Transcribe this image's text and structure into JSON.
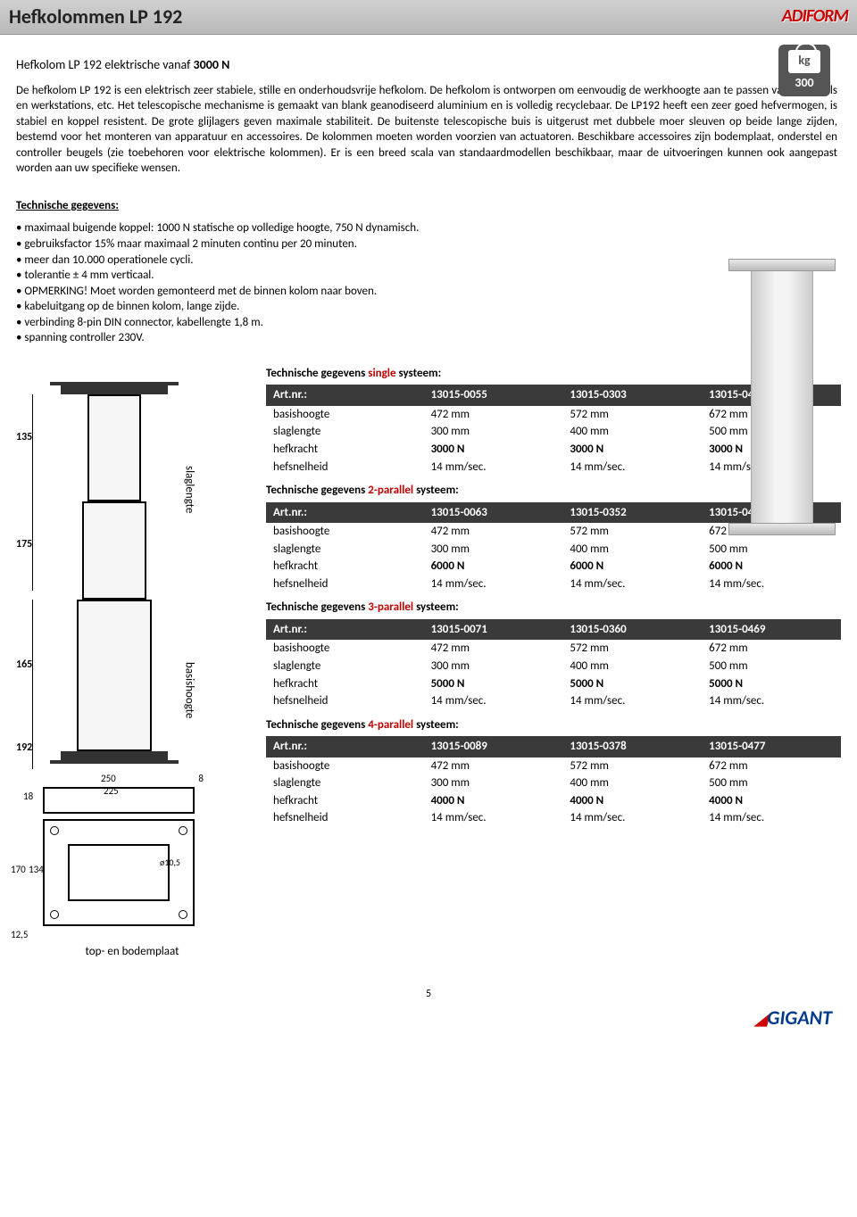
{
  "header": {
    "title": "Hefkolommen LP 192",
    "logo_top": "ADIFORM",
    "kg_label": "kg",
    "kg_value": "300"
  },
  "intro": {
    "title_prefix": "Hefkolom LP 192 elektrische vanaf ",
    "title_bold": "3000 N",
    "body": "De hefkolom LP 192 is een elektrisch zeer stabiele, stille en onderhoudsvrije hefkolom. De hefkolom is ontworpen om eenvoudig de werkhoogte aan te passen van o.a. tafels en werkstations, etc. Het telescopische mechanisme is gemaakt van blank geanodiseerd aluminium en is volledig recyclebaar. De LP192 heeft een zeer goed hefvermogen, is stabiel en koppel resistent. De grote glijlagers geven maximale stabiliteit. De buitenste telescopische buis is uitgerust met dubbele moer sleuven op beide lange zijden, bestemd voor het monteren van apparatuur en accessoires. De kolommen moeten worden voorzien van actuatoren. Beschikbare accessoires zijn bodemplaat, onderstel en controller beugels (zie toebehoren voor elektrische kolommen). Er is een breed scala van                       standaardmodellen beschikbaar, maar de uitvoeringen kunnen ook aangepast worden aan uw specifieke wensen."
  },
  "tech": {
    "heading": "Technische gegevens:",
    "bullets": [
      "maximaal buigende koppel: 1000 N statische op volledige hoogte, 750 N dynamisch.",
      "gebruiksfactor 15% maar maximaal 2 minuten continu per 20 minuten.",
      "meer dan 10.000 operationele cycli.",
      "tolerantie ± 4 mm verticaal.",
      "OPMERKING! Moet worden gemonteerd met de binnen kolom naar boven.",
      "kabeluitgang op de binnen kolom, lange zijde.",
      "verbinding 8-pin DIN connector, kabellengte 1,8 m.",
      "spanning controller 230V."
    ]
  },
  "diagram": {
    "d135": "135",
    "d175": "175",
    "d165": "165",
    "d192": "192",
    "slaglengte": "slaglengte",
    "basishoogte": "basishoogte",
    "caption": "top- en bodemplaat",
    "w250": "250",
    "w225": "225",
    "w8": "8",
    "h18": "18",
    "h170": "170",
    "h134": "134",
    "d105": "ø10,5",
    "l125": "12,5"
  },
  "systems": [
    {
      "title_prefix": "Technische gegevens ",
      "title_highlight": "single",
      "title_suffix": " systeem:",
      "art_label": "Art.nr.:",
      "cols": [
        "13015-0055",
        "13015-0303",
        "13015-0402"
      ],
      "rows": [
        {
          "label": "basishoogte",
          "v": [
            "472 mm",
            "572 mm",
            "672 mm"
          ],
          "bold": false
        },
        {
          "label": "slaglengte",
          "v": [
            "300 mm",
            "400 mm",
            "500 mm"
          ],
          "bold": false
        },
        {
          "label": "hefkracht",
          "v": [
            "3000 N",
            "3000 N",
            "3000 N"
          ],
          "bold": true
        },
        {
          "label": "hefsnelheid",
          "v": [
            "14 mm/sec.",
            "14 mm/sec.",
            "14 mm/sec."
          ],
          "bold": false
        }
      ]
    },
    {
      "title_prefix": "Technische gegevens ",
      "title_highlight": "2-parallel",
      "title_suffix": " systeem:",
      "art_label": "Art.nr.:",
      "cols": [
        "13015-0063",
        "13015-0352",
        "13015-0451"
      ],
      "rows": [
        {
          "label": "basishoogte",
          "v": [
            "472 mm",
            "572 mm",
            "672 mm"
          ],
          "bold": false
        },
        {
          "label": "slaglengte",
          "v": [
            "300 mm",
            "400 mm",
            "500 mm"
          ],
          "bold": false
        },
        {
          "label": "hefkracht",
          "v": [
            "6000 N",
            "6000 N",
            "6000 N"
          ],
          "bold": true
        },
        {
          "label": "hefsnelheid",
          "v": [
            "14 mm/sec.",
            "14 mm/sec.",
            "14 mm/sec."
          ],
          "bold": false
        }
      ]
    },
    {
      "title_prefix": "Technische gegevens ",
      "title_highlight": "3-parallel",
      "title_suffix": " systeem:",
      "art_label": "Art.nr.:",
      "cols": [
        "13015-0071",
        "13015-0360",
        "13015-0469"
      ],
      "rows": [
        {
          "label": "basishoogte",
          "v": [
            "472 mm",
            "572 mm",
            "672 mm"
          ],
          "bold": false
        },
        {
          "label": "slaglengte",
          "v": [
            "300 mm",
            "400 mm",
            "500 mm"
          ],
          "bold": false
        },
        {
          "label": "hefkracht",
          "v": [
            "5000 N",
            "5000 N",
            "5000 N"
          ],
          "bold": true
        },
        {
          "label": "hefsnelheid",
          "v": [
            "14 mm/sec.",
            "14 mm/sec.",
            "14 mm/sec."
          ],
          "bold": false
        }
      ]
    },
    {
      "title_prefix": "Technische gegevens ",
      "title_highlight": "4-parallel",
      "title_suffix": " systeem:",
      "art_label": "Art.nr.:",
      "cols": [
        "13015-0089",
        "13015-0378",
        "13015-0477"
      ],
      "rows": [
        {
          "label": "basishoogte",
          "v": [
            "472 mm",
            "572 mm",
            "672 mm"
          ],
          "bold": false
        },
        {
          "label": "slaglengte",
          "v": [
            "300 mm",
            "400 mm",
            "500 mm"
          ],
          "bold": false
        },
        {
          "label": "hefkracht",
          "v": [
            "4000 N",
            "4000 N",
            "4000 N"
          ],
          "bold": true
        },
        {
          "label": "hefsnelheid",
          "v": [
            "14 mm/sec.",
            "14 mm/sec.",
            "14 mm/sec."
          ],
          "bold": false
        }
      ]
    }
  ],
  "footer": {
    "page": "5",
    "logo_bottom": "GIGANT"
  },
  "colors": {
    "header_bg": "#c4c4c4",
    "table_header_bg": "#3a3a3a",
    "accent_red": "#c00000",
    "logo_blue": "#003a8c"
  }
}
